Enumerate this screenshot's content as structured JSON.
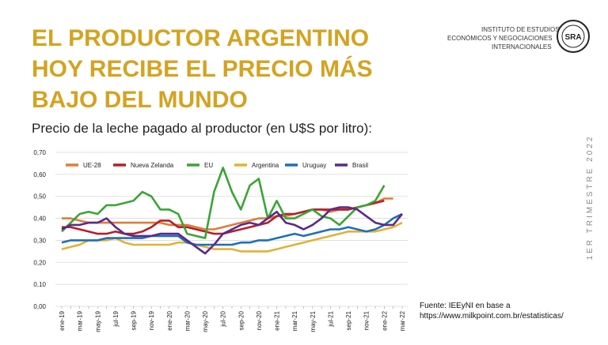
{
  "header": {
    "title": [
      "EL PRODUCTOR ARGENTINO",
      "HOY RECIBE EL PRECIO MÁS",
      "BAJO DEL MUNDO"
    ],
    "institute": [
      "INSTITUTO DE ESTUDIOS",
      "ECONÓMICOS Y NEGOCIACIONES",
      "INTERNACIONALES"
    ],
    "logo": "SRA",
    "side_label": "1ER TRIMESTRE 2022"
  },
  "chart_data": {
    "type": "line",
    "title": "Precio de la leche pagado al productor (en U$S por litro):",
    "source": [
      "Fuente: IEEyNI en base a",
      "https://www.milkpoint.com.br/estatisticas/"
    ],
    "categories": [
      "ene-19",
      null,
      "mar-19",
      null,
      "may-19",
      null,
      "jul-19",
      null,
      "sep-19",
      null,
      "nov-19",
      null,
      "ene-20",
      null,
      "mar-20",
      null,
      "may-20",
      null,
      "jul-20",
      null,
      "sep-20",
      null,
      "nov-20",
      null,
      "ene-21",
      null,
      "mar-21",
      null,
      "may-21",
      null,
      "jul-21",
      null,
      "sep-21",
      null,
      "nov-21",
      null,
      "ene-22",
      null,
      "mar-22"
    ],
    "ylim": [
      0,
      0.7
    ],
    "yticks": [
      {
        "value": 0,
        "label": "0,00"
      },
      {
        "value": 0.1,
        "label": "0,10"
      },
      {
        "value": 0.2,
        "label": "0,20"
      },
      {
        "value": 0.3,
        "label": "0,30"
      },
      {
        "value": 0.4,
        "label": "0,40"
      },
      {
        "value": 0.5,
        "label": "0,50"
      },
      {
        "value": 0.6,
        "label": "0,60"
      },
      {
        "value": 0.7,
        "label": "0,70"
      }
    ],
    "grid": true,
    "legend": "top",
    "series": [
      {
        "name": "UE-28",
        "color": "#e07b39",
        "values": [
          0.4,
          0.4,
          0.39,
          0.38,
          0.38,
          0.38,
          0.38,
          0.38,
          0.38,
          0.38,
          0.38,
          0.38,
          0.37,
          0.37,
          0.37,
          0.36,
          0.35,
          0.35,
          0.36,
          0.37,
          0.38,
          0.39,
          0.4,
          0.4,
          0.41,
          0.41,
          0.42,
          0.43,
          0.44,
          0.44,
          0.43,
          0.44,
          0.44,
          0.45,
          0.46,
          0.47,
          0.49,
          0.49,
          null
        ]
      },
      {
        "name": "Nueva Zelanda",
        "color": "#b3202a",
        "values": [
          0.36,
          0.36,
          0.35,
          0.34,
          0.33,
          0.33,
          0.34,
          0.33,
          0.33,
          0.34,
          0.36,
          0.39,
          0.39,
          0.36,
          0.36,
          0.35,
          0.34,
          0.33,
          0.33,
          0.34,
          0.35,
          0.36,
          0.37,
          0.38,
          0.41,
          0.42,
          0.42,
          0.43,
          0.44,
          0.44,
          0.44,
          0.44,
          0.44,
          0.45,
          0.46,
          0.47,
          0.48,
          null,
          null
        ]
      },
      {
        "name": "EU",
        "color": "#3aa535",
        "values": [
          0.34,
          0.38,
          0.42,
          0.43,
          0.42,
          0.46,
          0.46,
          0.47,
          0.48,
          0.52,
          0.5,
          0.44,
          0.44,
          0.42,
          0.33,
          0.32,
          0.31,
          0.52,
          0.63,
          0.52,
          0.44,
          0.55,
          0.58,
          0.4,
          0.48,
          0.4,
          0.4,
          0.42,
          0.44,
          0.41,
          0.4,
          0.37,
          0.41,
          0.45,
          0.46,
          0.48,
          0.55,
          null,
          null
        ]
      },
      {
        "name": "Argentina",
        "color": "#e2b234",
        "values": [
          0.26,
          0.27,
          0.28,
          0.3,
          0.3,
          0.3,
          0.31,
          0.29,
          0.28,
          0.28,
          0.28,
          0.28,
          0.28,
          0.29,
          0.29,
          0.28,
          0.27,
          0.26,
          0.26,
          0.26,
          0.25,
          0.25,
          0.25,
          0.25,
          0.26,
          0.27,
          0.28,
          0.29,
          0.3,
          0.31,
          0.32,
          0.33,
          0.34,
          0.34,
          0.34,
          0.34,
          0.35,
          0.36,
          0.38
        ]
      },
      {
        "name": "Uruguay",
        "color": "#1f6fb8",
        "values": [
          0.29,
          0.3,
          0.3,
          0.3,
          0.3,
          0.31,
          0.31,
          0.31,
          0.31,
          0.31,
          0.32,
          0.32,
          0.32,
          0.32,
          0.29,
          0.28,
          0.28,
          0.28,
          0.28,
          0.28,
          0.29,
          0.29,
          0.3,
          0.3,
          0.31,
          0.32,
          0.33,
          0.32,
          0.33,
          0.34,
          0.35,
          0.35,
          0.36,
          0.35,
          0.34,
          0.35,
          0.37,
          0.4,
          0.42
        ]
      },
      {
        "name": "Brasil",
        "color": "#5b2a8a",
        "values": [
          0.35,
          0.37,
          0.37,
          0.38,
          0.38,
          0.4,
          0.36,
          0.33,
          0.32,
          0.32,
          0.32,
          0.33,
          0.33,
          0.33,
          0.3,
          0.27,
          0.24,
          0.28,
          0.33,
          0.35,
          0.37,
          0.38,
          0.37,
          0.4,
          0.43,
          0.38,
          0.37,
          0.35,
          0.37,
          0.4,
          0.44,
          0.45,
          0.45,
          0.44,
          0.41,
          0.38,
          0.37,
          0.37,
          0.42
        ]
      }
    ]
  }
}
